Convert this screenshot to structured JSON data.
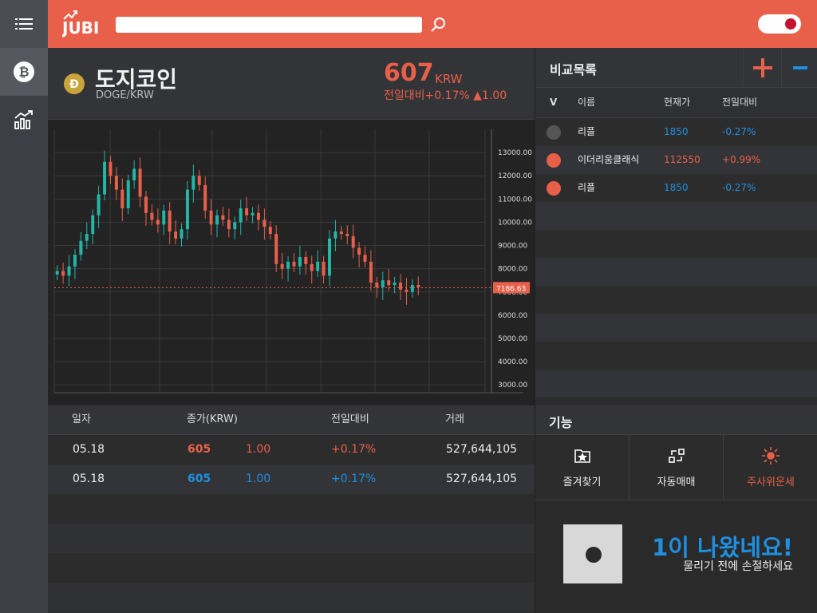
{
  "app": {
    "logo_text": "JUBI"
  },
  "search": {
    "value": "",
    "placeholder": ""
  },
  "coin": {
    "name": "도지코인",
    "pair": "DOGE/KRW",
    "price": "607",
    "unit": "KRW",
    "change": "전일대비+0.17% ▲1.00"
  },
  "chart_data": {
    "type": "candlestick",
    "current_price_label": "7186.63",
    "y_ticks": [
      "13000.00",
      "12000.00",
      "11000.00",
      "10000.00",
      "9000.00",
      "8000.00",
      "7000.00",
      "6000.00",
      "5000.00",
      "4000.00",
      "3000.00"
    ],
    "ylim": [
      2800,
      14000
    ],
    "close": [
      7900,
      7700,
      8100,
      8600,
      9200,
      9500,
      10300,
      11200,
      12600,
      12000,
      11400,
      10600,
      11800,
      12300,
      11100,
      10400,
      10100,
      9900,
      10500,
      9600,
      9300,
      9700,
      11400,
      12000,
      11600,
      10500,
      9900,
      10300,
      10100,
      9700,
      10000,
      10600,
      10300,
      10400,
      10100,
      9800,
      9500,
      8200,
      8000,
      8300,
      8100,
      8500,
      8200,
      7900,
      8300,
      7700,
      9300,
      9600,
      9500,
      9400,
      8900,
      8600,
      8300,
      7400,
      7200,
      7500,
      7300,
      7400,
      7100,
      7000,
      7300,
      7200
    ]
  },
  "history": {
    "headers": [
      "일자",
      "종가(KRW)",
      "전일대비",
      "거래"
    ],
    "rows": [
      {
        "date": "05.18",
        "close": "605",
        "diff": "1.00",
        "pct": "+0.17%",
        "volume": "527,644,105",
        "color": "#e8604a"
      },
      {
        "date": "05.18",
        "close": "605",
        "diff": "1.00",
        "pct": "+0.17%",
        "volume": "527,644,105",
        "color": "#1f8fe0"
      }
    ]
  },
  "compare": {
    "title": "비교목록",
    "headers": {
      "v": "V",
      "name": "이름",
      "price": "현재가",
      "change": "전일대비"
    },
    "rows": [
      {
        "name": "리플",
        "price": "1850",
        "change": "-0.27%",
        "dot": "#555555",
        "color": "#1f8fe0"
      },
      {
        "name": "이더리움클래식",
        "price": "112550",
        "change": "+0.99%",
        "dot": "#e8604a",
        "color": "#e8604a"
      },
      {
        "name": "리플",
        "price": "1850",
        "change": "-0.27%",
        "dot": "#e8604a",
        "color": "#1f8fe0"
      }
    ]
  },
  "functions": {
    "title": "기능",
    "items": [
      {
        "label": "즐겨찾기",
        "icon": "favorite-folder-icon"
      },
      {
        "label": "자동매매",
        "icon": "auto-trade-icon"
      },
      {
        "label": "주사위운세",
        "icon": "sun-icon"
      }
    ]
  },
  "banner": {
    "main": "1이 나왔네요!",
    "sub": "물리기 전에 손절하세요"
  },
  "colors": {
    "accent": "#e8604a",
    "blue": "#1f8fe0",
    "bg": "#2b2b2b"
  }
}
